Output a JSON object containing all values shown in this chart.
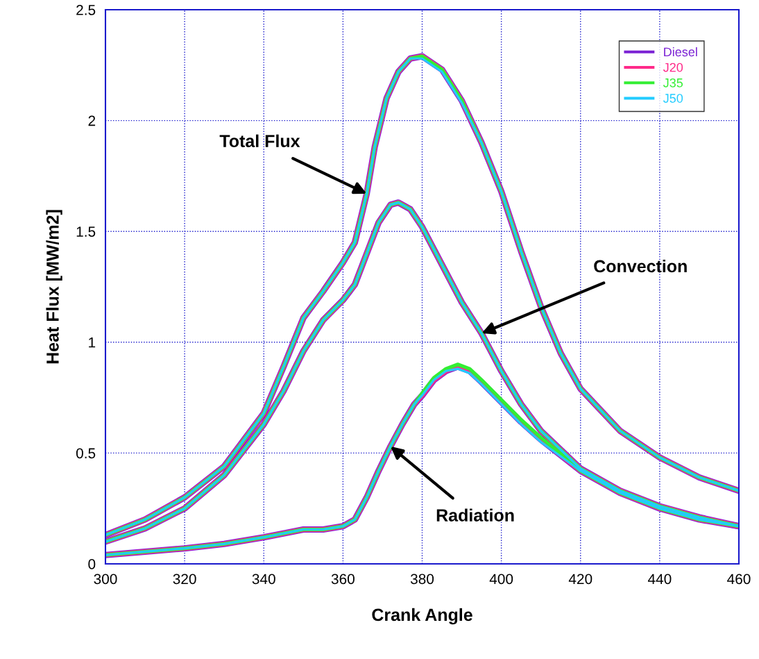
{
  "chart_data": {
    "type": "line",
    "xlabel": "Crank Angle",
    "ylabel": "Heat Flux [MW/m2]",
    "series": [
      {
        "name": "Diesel",
        "color": "#7b22d4",
        "x": [
          300,
          310,
          320,
          330,
          340,
          345,
          350,
          355,
          360,
          363,
          366,
          368,
          371,
          374,
          377,
          380,
          385,
          390,
          395,
          400,
          405,
          410,
          415,
          420,
          430,
          440,
          450,
          460
        ],
        "values": [
          0.13,
          0.2,
          0.3,
          0.44,
          0.68,
          0.89,
          1.11,
          1.23,
          1.36,
          1.45,
          1.67,
          1.88,
          2.1,
          2.22,
          2.28,
          2.29,
          2.23,
          2.09,
          1.9,
          1.68,
          1.41,
          1.16,
          0.95,
          0.79,
          0.6,
          0.48,
          0.39,
          0.33
        ]
      },
      {
        "color": "#7b22d4",
        "x": [
          300,
          310,
          320,
          330,
          340,
          345,
          350,
          355,
          360,
          363,
          366,
          369,
          372,
          374,
          377,
          380,
          385,
          390,
          395,
          400,
          405,
          410,
          420,
          430,
          440,
          450,
          460
        ],
        "values": [
          0.1,
          0.16,
          0.25,
          0.4,
          0.63,
          0.78,
          0.96,
          1.1,
          1.19,
          1.26,
          1.4,
          1.54,
          1.62,
          1.63,
          1.6,
          1.52,
          1.35,
          1.18,
          1.04,
          0.87,
          0.72,
          0.6,
          0.43,
          0.33,
          0.26,
          0.21,
          0.17
        ]
      },
      {
        "color": "#7b22d4",
        "x": [
          300,
          310,
          320,
          330,
          340,
          350,
          355,
          360,
          363,
          366,
          369,
          372,
          375,
          378,
          380,
          383,
          386,
          389,
          392,
          395,
          400,
          405,
          410,
          420,
          430,
          440,
          450,
          460
        ],
        "values": [
          0.04,
          0.055,
          0.07,
          0.09,
          0.12,
          0.155,
          0.155,
          0.17,
          0.2,
          0.3,
          0.42,
          0.53,
          0.63,
          0.72,
          0.76,
          0.83,
          0.87,
          0.89,
          0.87,
          0.82,
          0.73,
          0.64,
          0.56,
          0.42,
          0.32,
          0.25,
          0.2,
          0.17
        ]
      },
      {
        "name": "J20",
        "color": "#ff2a8a",
        "x": [
          300,
          310,
          320,
          330,
          340,
          345,
          350,
          355,
          360,
          363,
          366,
          368,
          371,
          374,
          377,
          380,
          385,
          390,
          395,
          400,
          405,
          410,
          415,
          420,
          430,
          440,
          450,
          460
        ],
        "values": [
          0.13,
          0.2,
          0.3,
          0.44,
          0.68,
          0.89,
          1.11,
          1.23,
          1.36,
          1.45,
          1.67,
          1.88,
          2.1,
          2.22,
          2.28,
          2.29,
          2.23,
          2.09,
          1.9,
          1.68,
          1.41,
          1.16,
          0.95,
          0.79,
          0.6,
          0.48,
          0.39,
          0.33
        ]
      },
      {
        "color": "#ff2a8a",
        "x": [
          300,
          310,
          320,
          330,
          340,
          345,
          350,
          355,
          360,
          363,
          366,
          369,
          372,
          374,
          377,
          380,
          385,
          390,
          395,
          400,
          405,
          410,
          420,
          430,
          440,
          450,
          460
        ],
        "values": [
          0.1,
          0.16,
          0.25,
          0.4,
          0.63,
          0.78,
          0.96,
          1.1,
          1.19,
          1.26,
          1.4,
          1.54,
          1.62,
          1.63,
          1.6,
          1.52,
          1.35,
          1.18,
          1.04,
          0.87,
          0.72,
          0.6,
          0.43,
          0.33,
          0.26,
          0.21,
          0.17
        ]
      },
      {
        "color": "#ff2a8a",
        "x": [
          300,
          310,
          320,
          330,
          340,
          350,
          355,
          360,
          363,
          366,
          369,
          372,
          375,
          378,
          380,
          383,
          386,
          389,
          392,
          395,
          400,
          405,
          410,
          420,
          430,
          440,
          450,
          460
        ],
        "values": [
          0.04,
          0.055,
          0.07,
          0.09,
          0.12,
          0.155,
          0.155,
          0.17,
          0.2,
          0.3,
          0.42,
          0.53,
          0.63,
          0.72,
          0.76,
          0.83,
          0.87,
          0.89,
          0.87,
          0.82,
          0.73,
          0.64,
          0.56,
          0.42,
          0.32,
          0.25,
          0.2,
          0.17
        ]
      },
      {
        "name": "J35",
        "color": "#33ee33",
        "x": [
          300,
          310,
          320,
          330,
          340,
          345,
          350,
          355,
          360,
          363,
          366,
          368,
          371,
          374,
          377,
          380,
          385,
          390,
          395,
          400,
          405,
          410,
          415,
          420,
          430,
          440,
          450,
          460
        ],
        "values": [
          0.13,
          0.2,
          0.3,
          0.44,
          0.68,
          0.89,
          1.11,
          1.23,
          1.36,
          1.45,
          1.67,
          1.88,
          2.1,
          2.22,
          2.28,
          2.29,
          2.23,
          2.09,
          1.9,
          1.68,
          1.41,
          1.16,
          0.95,
          0.79,
          0.6,
          0.48,
          0.39,
          0.33
        ]
      },
      {
        "color": "#33ee33",
        "x": [
          300,
          310,
          320,
          330,
          340,
          345,
          350,
          355,
          360,
          363,
          366,
          369,
          372,
          374,
          377,
          380,
          385,
          390,
          395,
          400,
          405,
          410,
          420,
          430,
          440,
          450,
          460
        ],
        "values": [
          0.1,
          0.16,
          0.25,
          0.4,
          0.63,
          0.78,
          0.96,
          1.1,
          1.19,
          1.26,
          1.4,
          1.54,
          1.62,
          1.63,
          1.6,
          1.52,
          1.35,
          1.18,
          1.04,
          0.87,
          0.72,
          0.6,
          0.43,
          0.33,
          0.26,
          0.21,
          0.17
        ]
      },
      {
        "color": "#33ee33",
        "x": [
          300,
          310,
          320,
          330,
          340,
          350,
          355,
          360,
          363,
          366,
          369,
          372,
          375,
          378,
          380,
          383,
          386,
          389,
          392,
          395,
          400,
          405,
          410,
          420,
          430,
          440,
          450,
          460
        ],
        "values": [
          0.04,
          0.055,
          0.07,
          0.09,
          0.12,
          0.155,
          0.155,
          0.17,
          0.2,
          0.3,
          0.42,
          0.53,
          0.63,
          0.72,
          0.77,
          0.84,
          0.88,
          0.9,
          0.88,
          0.83,
          0.74,
          0.65,
          0.57,
          0.42,
          0.32,
          0.25,
          0.2,
          0.17
        ]
      },
      {
        "name": "J50",
        "color": "#22ccff",
        "x": [
          300,
          310,
          320,
          330,
          340,
          345,
          350,
          355,
          360,
          363,
          366,
          368,
          371,
          374,
          377,
          380,
          385,
          390,
          395,
          400,
          405,
          410,
          415,
          420,
          430,
          440,
          450,
          460
        ],
        "values": [
          0.13,
          0.2,
          0.3,
          0.44,
          0.68,
          0.89,
          1.11,
          1.23,
          1.36,
          1.45,
          1.67,
          1.88,
          2.1,
          2.22,
          2.28,
          2.28,
          2.22,
          2.08,
          1.9,
          1.68,
          1.41,
          1.16,
          0.95,
          0.79,
          0.6,
          0.48,
          0.39,
          0.33
        ]
      },
      {
        "color": "#22ccff",
        "x": [
          300,
          310,
          320,
          330,
          340,
          345,
          350,
          355,
          360,
          363,
          366,
          369,
          372,
          374,
          377,
          380,
          385,
          390,
          395,
          400,
          405,
          410,
          420,
          430,
          440,
          450,
          460
        ],
        "values": [
          0.1,
          0.16,
          0.25,
          0.4,
          0.63,
          0.78,
          0.96,
          1.1,
          1.19,
          1.26,
          1.4,
          1.54,
          1.62,
          1.63,
          1.6,
          1.52,
          1.35,
          1.18,
          1.04,
          0.87,
          0.72,
          0.6,
          0.43,
          0.33,
          0.26,
          0.21,
          0.17
        ]
      },
      {
        "color": "#22ccff",
        "x": [
          300,
          310,
          320,
          330,
          340,
          350,
          355,
          360,
          363,
          366,
          369,
          372,
          375,
          378,
          380,
          383,
          386,
          389,
          392,
          395,
          400,
          405,
          410,
          420,
          430,
          440,
          450,
          460
        ],
        "values": [
          0.04,
          0.055,
          0.07,
          0.09,
          0.12,
          0.155,
          0.155,
          0.17,
          0.2,
          0.3,
          0.42,
          0.53,
          0.63,
          0.72,
          0.76,
          0.83,
          0.87,
          0.88,
          0.86,
          0.81,
          0.72,
          0.63,
          0.55,
          0.42,
          0.32,
          0.25,
          0.2,
          0.17
        ]
      }
    ],
    "xlim": [
      300,
      460
    ],
    "xticks": [
      300,
      320,
      340,
      360,
      380,
      400,
      420,
      440,
      460
    ],
    "ylim": [
      0,
      2.5
    ],
    "yticks": [
      0,
      0.5,
      1,
      1.5,
      2,
      2.5
    ],
    "grid": true,
    "legend": "top right",
    "marker": "none",
    "line_style": "solid",
    "annotations": [
      {
        "text": "Total Flux",
        "x": 366,
        "y": 1.67
      },
      {
        "text": "Convection",
        "x": 395,
        "y": 1.04
      },
      {
        "text": "Radiation",
        "x": 372,
        "y": 0.53
      }
    ]
  }
}
